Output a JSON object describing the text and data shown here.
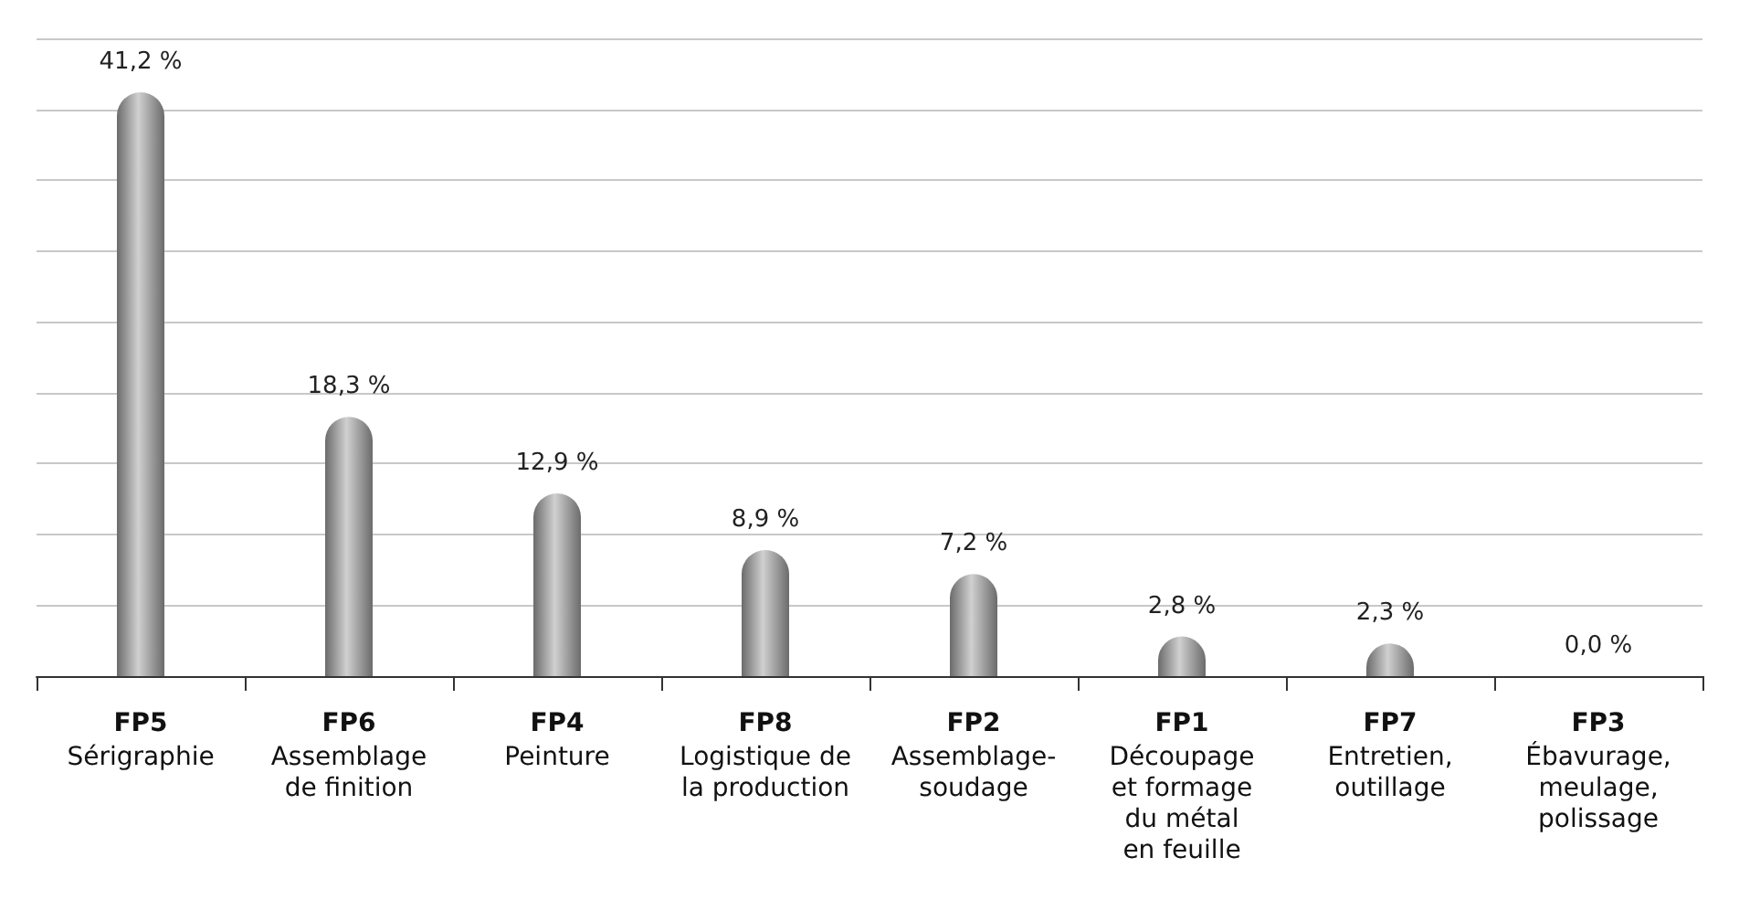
{
  "chart_data": {
    "type": "bar",
    "categories": [
      "FP5\nSérigraphie",
      "FP6\nAssemblage\nde finition",
      "FP4\nPeinture",
      "FP8\nLogistique de\nla production",
      "FP2\nAssemblage-\nsoudage",
      "FP1\nDécoupage\net formage\ndu métal\nen feuille",
      "FP7\nEntretien,\noutillage",
      "FP3\nÉbavurage,\nmeulage,\npolissage"
    ],
    "values": [
      41.2,
      18.3,
      12.9,
      8.9,
      7.2,
      2.8,
      2.3,
      0.0
    ],
    "value_labels": [
      "41,2 %",
      "18,3 %",
      "12,9 %",
      "8,9 %",
      "7,2 %",
      "2,8 %",
      "2,3 %",
      "0,0 %"
    ],
    "color": "#6b6b6b",
    "ylim": [
      0,
      45
    ],
    "yticks": [
      {
        "value": 0,
        "label": null
      },
      {
        "value": 5,
        "label": null
      },
      {
        "value": 10,
        "label": null
      },
      {
        "value": 15,
        "label": null
      },
      {
        "value": 20,
        "label": null
      },
      {
        "value": 25,
        "label": null
      },
      {
        "value": 30,
        "label": null
      },
      {
        "value": 35,
        "label": null
      },
      {
        "value": 40,
        "label": null
      },
      {
        "value": 45,
        "label": null
      }
    ],
    "grid": "y",
    "tick_labels": "x"
  }
}
